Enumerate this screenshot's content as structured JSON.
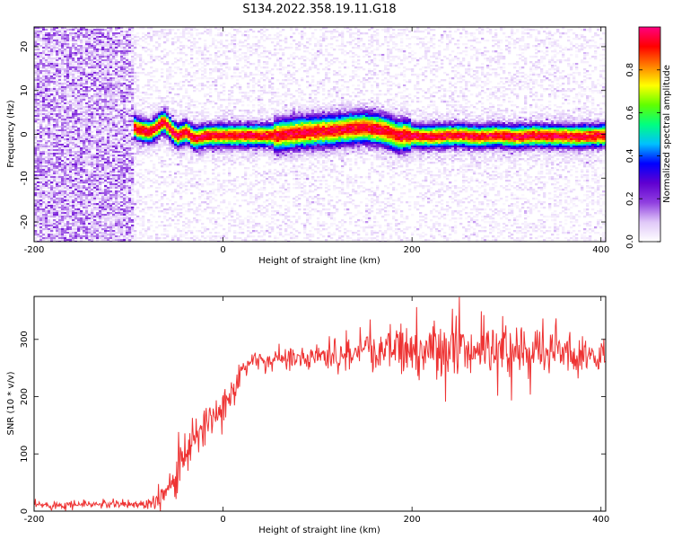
{
  "chart_data": [
    {
      "type": "heatmap",
      "title": "S134.2022.358.19.11.G18",
      "xlabel": "Height of straight line (km)",
      "ylabel": "Frequency (Hz)",
      "xlim": [
        -200,
        405
      ],
      "ylim": [
        -24.5,
        24.5
      ],
      "xticks": [
        -200,
        0,
        200,
        400
      ],
      "yticks": [
        -20,
        -10,
        0,
        10,
        20
      ],
      "colorbar": {
        "label": "Normalized spectral amplitude",
        "range": [
          0.0,
          1.0
        ],
        "ticks": [
          0.0,
          0.2,
          0.4,
          0.6,
          0.8
        ],
        "tick_labels": [
          "0.0",
          "0.2",
          "0.4",
          "0.6",
          "0.8"
        ],
        "colormap": [
          "#ffffff",
          "#e0c8f8",
          "#9040e0",
          "#6000d0",
          "#0000ff",
          "#00c0ff",
          "#00ff80",
          "#60ff00",
          "#ffff00",
          "#ff8000",
          "#ff0000",
          "#ff0080"
        ]
      },
      "noise_region_x": [
        -200,
        -95
      ],
      "ridge": {
        "x": [
          -108,
          -103,
          -97,
          -92,
          -85,
          -78,
          -70,
          -63,
          -58,
          -53,
          -48,
          -43,
          -38,
          -33,
          -28,
          -23,
          -18,
          -10,
          0,
          20,
          40,
          58,
          65,
          80,
          100,
          120,
          135,
          150,
          160,
          170,
          178,
          185,
          192,
          200,
          215,
          230,
          250,
          270,
          290,
          310,
          330,
          350,
          370,
          390,
          405
        ],
        "y": [
          1.5,
          2.5,
          2.2,
          1.2,
          0.8,
          0.5,
          1.5,
          3.0,
          1.8,
          0.5,
          -0.4,
          0.1,
          0.6,
          -0.6,
          -1.0,
          -0.6,
          -0.4,
          -0.3,
          -0.3,
          -0.3,
          -0.3,
          -0.3,
          -0.1,
          0.3,
          0.6,
          0.9,
          1.3,
          1.5,
          1.2,
          0.8,
          0.3,
          -0.4,
          -0.2,
          -0.4,
          -0.6,
          -0.4,
          -0.2,
          -0.6,
          -0.3,
          -0.6,
          -0.3,
          -0.4,
          -0.5,
          -0.4,
          -0.3
        ]
      }
    },
    {
      "type": "line",
      "title": "",
      "xlabel": "Height of straight line (km)",
      "ylabel": "SNR (10 * v/v)",
      "xlim": [
        -200,
        405
      ],
      "ylim": [
        0,
        375
      ],
      "xticks": [
        -200,
        0,
        200,
        400
      ],
      "yticks": [
        0,
        100,
        200,
        300
      ],
      "color": "#ee3333",
      "series": [
        {
          "x": [
            -200,
            -150,
            -100,
            -80,
            -70,
            -60,
            -50,
            -45,
            -40,
            -30,
            -20,
            -10,
            0,
            10,
            20,
            30,
            40,
            60,
            100,
            150,
            200,
            250,
            300,
            350,
            380,
            405
          ],
          "y": [
            10,
            12,
            12,
            13,
            25,
            40,
            65,
            85,
            100,
            125,
            145,
            165,
            185,
            215,
            245,
            262,
            265,
            268,
            272,
            277,
            280,
            283,
            283,
            278,
            272,
            268
          ],
          "noise_amplitude": [
            4,
            4,
            4,
            5,
            12,
            15,
            20,
            24,
            26,
            24,
            22,
            20,
            18,
            14,
            10,
            8,
            8,
            10,
            12,
            18,
            24,
            28,
            26,
            22,
            18,
            16
          ]
        }
      ]
    }
  ]
}
